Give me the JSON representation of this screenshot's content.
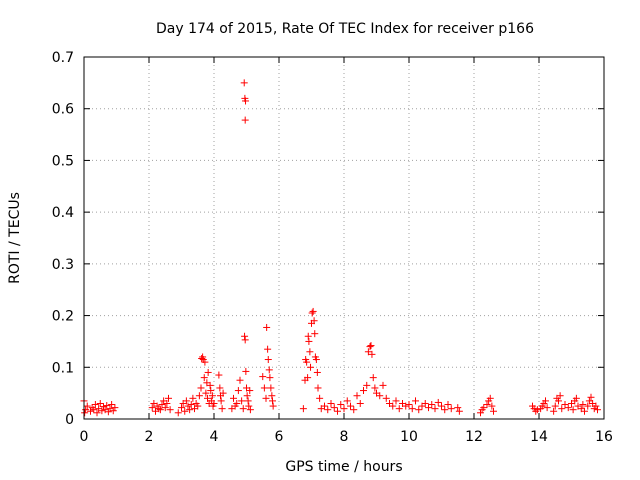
{
  "chart_data": {
    "type": "scatter",
    "title": "Day 174 of 2015, Rate Of TEC Index for receiver p166",
    "xlabel": "GPS time / hours",
    "ylabel": "ROTI / TECUs",
    "xlim": [
      0,
      16
    ],
    "ylim": [
      0,
      0.7
    ],
    "xticks": [
      0,
      2,
      4,
      6,
      8,
      10,
      12,
      14,
      16
    ],
    "yticks": [
      0,
      0.1,
      0.2,
      0.3,
      0.4,
      0.5,
      0.6,
      0.7
    ],
    "xtick_labels": [
      "0",
      "2",
      "4",
      "6",
      "8",
      "10",
      "12",
      "14",
      "16"
    ],
    "ytick_labels": [
      "0",
      "0.1",
      "0.2",
      "0.3",
      "0.4",
      "0.5",
      "0.6",
      "0.7"
    ],
    "grid": true,
    "marker": "+",
    "color": "#ff0000",
    "series": [
      {
        "name": "ROTI",
        "points": [
          [
            0.0,
            0.035
          ],
          [
            0.02,
            0.012
          ],
          [
            0.05,
            0.018
          ],
          [
            0.1,
            0.025
          ],
          [
            0.2,
            0.015
          ],
          [
            0.25,
            0.022
          ],
          [
            0.3,
            0.018
          ],
          [
            0.35,
            0.028
          ],
          [
            0.4,
            0.012
          ],
          [
            0.45,
            0.02
          ],
          [
            0.5,
            0.03
          ],
          [
            0.55,
            0.016
          ],
          [
            0.6,
            0.024
          ],
          [
            0.65,
            0.018
          ],
          [
            0.7,
            0.026
          ],
          [
            0.75,
            0.014
          ],
          [
            0.8,
            0.02
          ],
          [
            0.85,
            0.028
          ],
          [
            0.9,
            0.016
          ],
          [
            0.95,
            0.022
          ],
          [
            2.1,
            0.022
          ],
          [
            2.15,
            0.03
          ],
          [
            2.2,
            0.015
          ],
          [
            2.25,
            0.025
          ],
          [
            2.3,
            0.02
          ],
          [
            2.35,
            0.018
          ],
          [
            2.4,
            0.028
          ],
          [
            2.45,
            0.035
          ],
          [
            2.5,
            0.022
          ],
          [
            2.55,
            0.03
          ],
          [
            2.6,
            0.04
          ],
          [
            2.65,
            0.018
          ],
          [
            2.9,
            0.012
          ],
          [
            3.0,
            0.022
          ],
          [
            3.05,
            0.03
          ],
          [
            3.1,
            0.015
          ],
          [
            3.15,
            0.035
          ],
          [
            3.2,
            0.025
          ],
          [
            3.25,
            0.018
          ],
          [
            3.3,
            0.028
          ],
          [
            3.35,
            0.04
          ],
          [
            3.4,
            0.02
          ],
          [
            3.45,
            0.03
          ],
          [
            3.5,
            0.025
          ],
          [
            3.55,
            0.045
          ],
          [
            3.6,
            0.06
          ],
          [
            3.62,
            0.117
          ],
          [
            3.65,
            0.12
          ],
          [
            3.67,
            0.115
          ],
          [
            3.7,
            0.08
          ],
          [
            3.72,
            0.11
          ],
          [
            3.75,
            0.05
          ],
          [
            3.78,
            0.07
          ],
          [
            3.8,
            0.04
          ],
          [
            3.82,
            0.09
          ],
          [
            3.85,
            0.03
          ],
          [
            3.88,
            0.065
          ],
          [
            3.9,
            0.055
          ],
          [
            3.92,
            0.035
          ],
          [
            3.95,
            0.045
          ],
          [
            3.97,
            0.025
          ],
          [
            4.0,
            0.03
          ],
          [
            4.15,
            0.085
          ],
          [
            4.18,
            0.06
          ],
          [
            4.2,
            0.045
          ],
          [
            4.22,
            0.035
          ],
          [
            4.25,
            0.02
          ],
          [
            4.28,
            0.05
          ],
          [
            4.55,
            0.02
          ],
          [
            4.6,
            0.04
          ],
          [
            4.65,
            0.025
          ],
          [
            4.7,
            0.03
          ],
          [
            4.75,
            0.055
          ],
          [
            4.8,
            0.075
          ],
          [
            4.85,
            0.035
          ],
          [
            4.9,
            0.02
          ],
          [
            4.93,
            0.65
          ],
          [
            4.95,
            0.62
          ],
          [
            4.97,
            0.615
          ],
          [
            4.96,
            0.578
          ],
          [
            4.94,
            0.16
          ],
          [
            4.96,
            0.153
          ],
          [
            4.98,
            0.092
          ],
          [
            5.0,
            0.06
          ],
          [
            5.02,
            0.045
          ],
          [
            5.05,
            0.035
          ],
          [
            5.07,
            0.025
          ],
          [
            5.1,
            0.055
          ],
          [
            5.12,
            0.018
          ],
          [
            5.5,
            0.082
          ],
          [
            5.55,
            0.06
          ],
          [
            5.6,
            0.04
          ],
          [
            5.62,
            0.177
          ],
          [
            5.65,
            0.135
          ],
          [
            5.67,
            0.115
          ],
          [
            5.7,
            0.095
          ],
          [
            5.72,
            0.08
          ],
          [
            5.75,
            0.06
          ],
          [
            5.78,
            0.045
          ],
          [
            5.8,
            0.035
          ],
          [
            5.82,
            0.025
          ],
          [
            6.75,
            0.02
          ],
          [
            6.8,
            0.075
          ],
          [
            6.82,
            0.115
          ],
          [
            6.85,
            0.11
          ],
          [
            6.88,
            0.08
          ],
          [
            6.9,
            0.16
          ],
          [
            6.92,
            0.15
          ],
          [
            6.95,
            0.13
          ],
          [
            6.97,
            0.1
          ],
          [
            7.0,
            0.185
          ],
          [
            7.02,
            0.205
          ],
          [
            7.05,
            0.208
          ],
          [
            7.08,
            0.19
          ],
          [
            7.1,
            0.165
          ],
          [
            7.12,
            0.12
          ],
          [
            7.15,
            0.115
          ],
          [
            7.18,
            0.09
          ],
          [
            7.2,
            0.06
          ],
          [
            7.25,
            0.04
          ],
          [
            7.3,
            0.02
          ],
          [
            7.4,
            0.025
          ],
          [
            7.5,
            0.018
          ],
          [
            7.6,
            0.03
          ],
          [
            7.7,
            0.022
          ],
          [
            7.8,
            0.015
          ],
          [
            7.9,
            0.028
          ],
          [
            8.0,
            0.02
          ],
          [
            8.1,
            0.035
          ],
          [
            8.2,
            0.025
          ],
          [
            8.3,
            0.018
          ],
          [
            8.4,
            0.045
          ],
          [
            8.5,
            0.03
          ],
          [
            8.6,
            0.055
          ],
          [
            8.7,
            0.065
          ],
          [
            8.75,
            0.13
          ],
          [
            8.8,
            0.14
          ],
          [
            8.83,
            0.142
          ],
          [
            8.86,
            0.125
          ],
          [
            8.9,
            0.08
          ],
          [
            8.95,
            0.06
          ],
          [
            9.0,
            0.05
          ],
          [
            9.1,
            0.045
          ],
          [
            9.2,
            0.065
          ],
          [
            9.3,
            0.04
          ],
          [
            9.4,
            0.03
          ],
          [
            9.5,
            0.025
          ],
          [
            9.6,
            0.035
          ],
          [
            9.7,
            0.02
          ],
          [
            9.8,
            0.03
          ],
          [
            9.9,
            0.025
          ],
          [
            10.0,
            0.028
          ],
          [
            10.1,
            0.02
          ],
          [
            10.2,
            0.035
          ],
          [
            10.3,
            0.018
          ],
          [
            10.4,
            0.025
          ],
          [
            10.5,
            0.03
          ],
          [
            10.6,
            0.022
          ],
          [
            10.7,
            0.028
          ],
          [
            10.8,
            0.02
          ],
          [
            10.9,
            0.032
          ],
          [
            11.0,
            0.025
          ],
          [
            11.1,
            0.018
          ],
          [
            11.2,
            0.028
          ],
          [
            11.3,
            0.02
          ],
          [
            11.5,
            0.022
          ],
          [
            11.55,
            0.015
          ],
          [
            12.2,
            0.012
          ],
          [
            12.25,
            0.018
          ],
          [
            12.3,
            0.022
          ],
          [
            12.4,
            0.028
          ],
          [
            12.45,
            0.035
          ],
          [
            12.5,
            0.04
          ],
          [
            12.55,
            0.025
          ],
          [
            12.6,
            0.015
          ],
          [
            13.8,
            0.025
          ],
          [
            13.85,
            0.02
          ],
          [
            13.9,
            0.015
          ],
          [
            13.95,
            0.018
          ],
          [
            14.05,
            0.02
          ],
          [
            14.1,
            0.025
          ],
          [
            14.15,
            0.03
          ],
          [
            14.2,
            0.035
          ],
          [
            14.25,
            0.022
          ],
          [
            14.45,
            0.015
          ],
          [
            14.5,
            0.025
          ],
          [
            14.55,
            0.04
          ],
          [
            14.6,
            0.035
          ],
          [
            14.65,
            0.045
          ],
          [
            14.7,
            0.02
          ],
          [
            14.8,
            0.028
          ],
          [
            14.9,
            0.022
          ],
          [
            15.0,
            0.03
          ],
          [
            15.05,
            0.018
          ],
          [
            15.1,
            0.035
          ],
          [
            15.15,
            0.04
          ],
          [
            15.2,
            0.025
          ],
          [
            15.3,
            0.02
          ],
          [
            15.35,
            0.028
          ],
          [
            15.4,
            0.015
          ],
          [
            15.5,
            0.025
          ],
          [
            15.55,
            0.035
          ],
          [
            15.6,
            0.042
          ],
          [
            15.65,
            0.03
          ],
          [
            15.7,
            0.02
          ],
          [
            15.75,
            0.025
          ],
          [
            15.8,
            0.018
          ]
        ]
      }
    ]
  }
}
